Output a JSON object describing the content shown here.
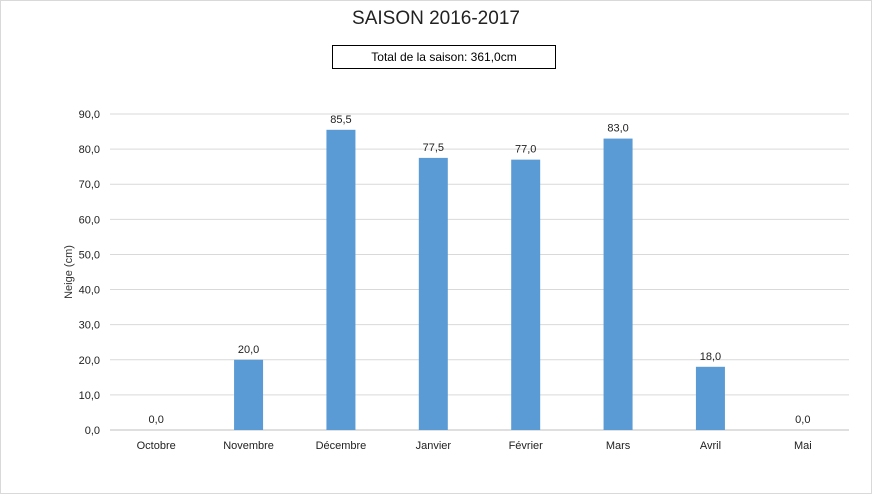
{
  "chart_data": {
    "type": "bar",
    "title": "SAISON 2016-2017",
    "subtitle": "Total de la saison: 361,0cm",
    "ylabel": "Neige (cm)",
    "xlabel": "",
    "ylim": [
      0,
      90
    ],
    "yticks": [
      "0,0",
      "10,0",
      "20,0",
      "30,0",
      "40,0",
      "50,0",
      "60,0",
      "70,0",
      "80,0",
      "90,0"
    ],
    "categories": [
      "Octobre",
      "Novembre",
      "Décembre",
      "Janvier",
      "Février",
      "Mars",
      "Avril",
      "Mai"
    ],
    "values": [
      0,
      20,
      85.5,
      77.5,
      77,
      83,
      18,
      0
    ],
    "data_labels": [
      "0,0",
      "20,0",
      "85,5",
      "77,5",
      "77,0",
      "83,0",
      "18,0",
      "0,0"
    ],
    "grid": true,
    "legend": "none",
    "bar_color": "#5b9bd5",
    "grid_color": "#d9d9d9"
  }
}
